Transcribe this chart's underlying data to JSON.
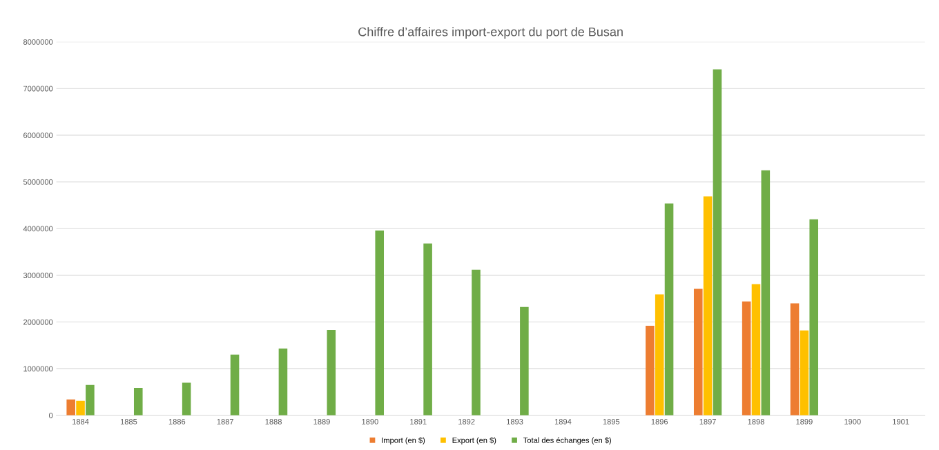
{
  "chart_data": {
    "type": "bar",
    "title": "Chiffre d’affaires import-export du port de Busan",
    "categories": [
      "1884",
      "1885",
      "1886",
      "1887",
      "1888",
      "1889",
      "1890",
      "1891",
      "1892",
      "1893",
      "1894",
      "1895",
      "1896",
      "1897",
      "1898",
      "1899",
      "1900",
      "1901"
    ],
    "series": [
      {
        "name": "Import (en $)",
        "color": "#ed7d31",
        "values": [
          340000,
          null,
          null,
          null,
          null,
          null,
          null,
          null,
          null,
          null,
          null,
          null,
          1920000,
          2710000,
          2440000,
          2400000,
          null,
          null
        ]
      },
      {
        "name": "Export (en $)",
        "color": "#ffc000",
        "values": [
          310000,
          null,
          null,
          null,
          null,
          null,
          null,
          null,
          null,
          null,
          null,
          null,
          2590000,
          4690000,
          2810000,
          1820000,
          null,
          null
        ]
      },
      {
        "name": "Total des échanges (en $)",
        "color": "#70ad47",
        "values": [
          650000,
          590000,
          700000,
          1300000,
          1430000,
          1830000,
          3960000,
          3680000,
          3120000,
          2320000,
          null,
          null,
          4540000,
          7410000,
          5250000,
          4200000,
          null,
          null
        ]
      }
    ],
    "ylim": [
      0,
      8000000
    ],
    "yticks": [
      0,
      1000000,
      2000000,
      3000000,
      4000000,
      5000000,
      6000000,
      7000000,
      8000000
    ],
    "grid": "y",
    "legend": "bottom"
  }
}
